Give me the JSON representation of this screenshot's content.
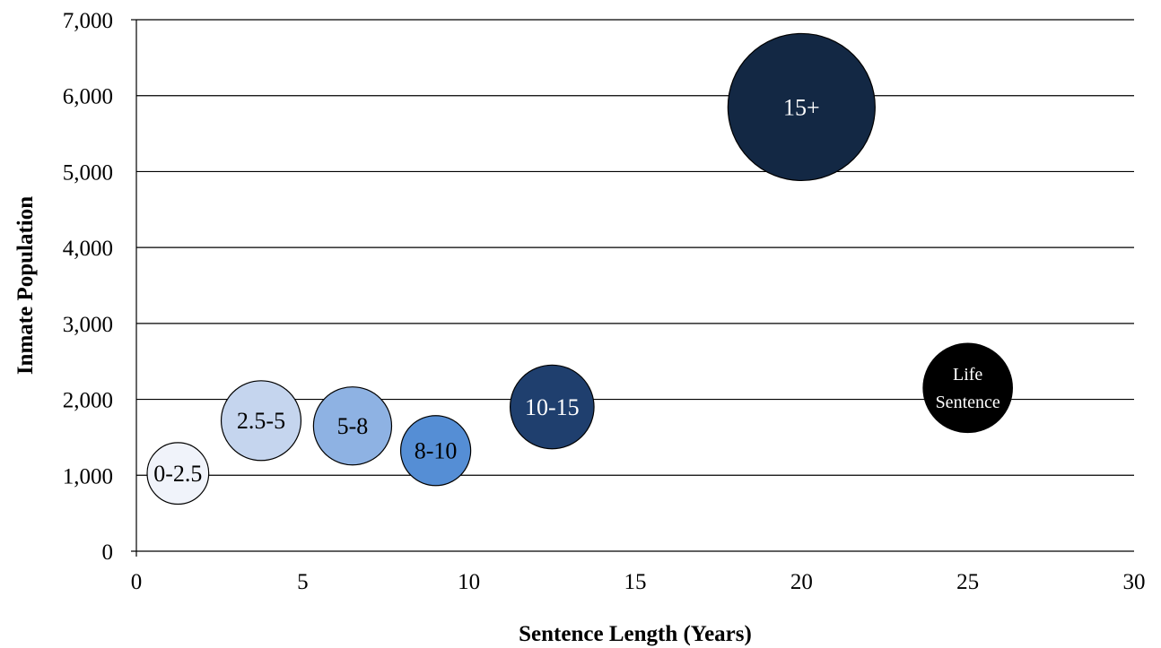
{
  "chart_data": {
    "type": "bubble",
    "title": "",
    "xlabel": "Sentence Length (Years)",
    "ylabel": "Inmate Population",
    "xlim": [
      0,
      30
    ],
    "ylim": [
      0,
      7000
    ],
    "xticks": [
      0,
      5,
      10,
      15,
      20,
      25,
      30
    ],
    "xtick_labels": [
      "0",
      "5",
      "10",
      "15",
      "20",
      "25",
      "30"
    ],
    "yticks": [
      0,
      1000,
      2000,
      3000,
      4000,
      5000,
      6000,
      7000
    ],
    "ytick_labels": [
      "0",
      "1,000",
      "2,000",
      "3,000",
      "4,000",
      "5,000",
      "6,000",
      "7,000"
    ],
    "grid": {
      "horizontal": true,
      "vertical": false
    },
    "legend": "none",
    "points": [
      {
        "label": [
          "0-2.5"
        ],
        "x": 1.25,
        "y": 1025,
        "size": 1025,
        "color": "#f0f3fa",
        "label_color": "#000000"
      },
      {
        "label": [
          "2.5-5"
        ],
        "x": 3.75,
        "y": 1720,
        "size": 1720,
        "color": "#c5d5ee",
        "label_color": "#000000"
      },
      {
        "label": [
          "5-8"
        ],
        "x": 6.5,
        "y": 1650,
        "size": 1650,
        "color": "#8eb2e3",
        "label_color": "#000000"
      },
      {
        "label": [
          "8-10"
        ],
        "x": 9,
        "y": 1325,
        "size": 1325,
        "color": "#558ed5",
        "label_color": "#000000"
      },
      {
        "label": [
          "10-15"
        ],
        "x": 12.5,
        "y": 1900,
        "size": 1900,
        "color": "#1f3f6e",
        "label_color": "#ffffff"
      },
      {
        "label": [
          "15+"
        ],
        "x": 20,
        "y": 5850,
        "size": 5850,
        "color": "#132844",
        "label_color": "#ffffff"
      },
      {
        "label": [
          "Life",
          "Sentence"
        ],
        "x": 25,
        "y": 2150,
        "size": 2150,
        "color": "#000000",
        "label_color": "#ffffff"
      }
    ]
  }
}
